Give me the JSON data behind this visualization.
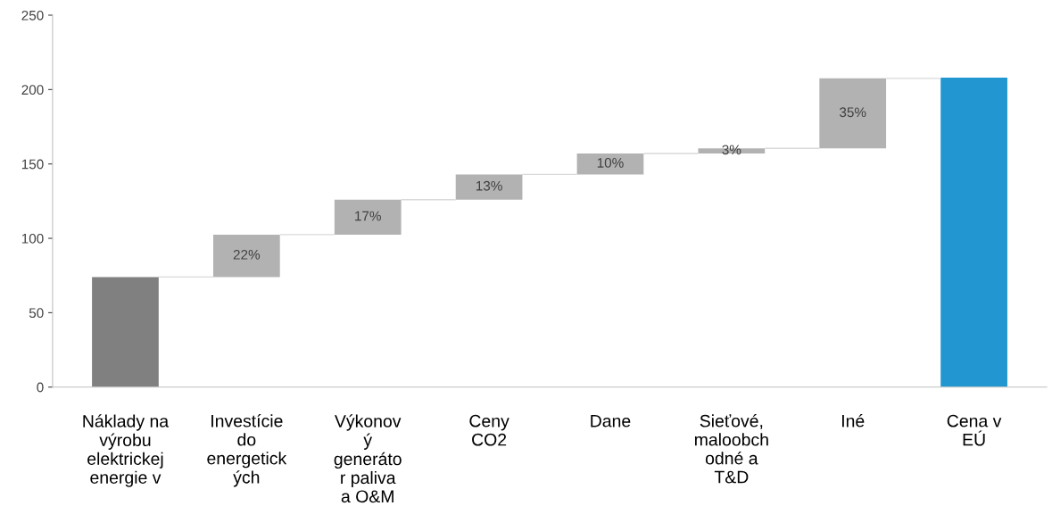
{
  "chart_data": {
    "type": "bar",
    "categories": [
      "Náklady na\nvýrobu\nelektrickej\nenergie v",
      "Investície\ndo\nenergetick\ných",
      "Výkonov\ný\ngeneráto\nr paliva\na O&M",
      "Ceny\nCO2",
      "Dane",
      "Sieťové,\nmaloobch\nodné a\nT&D",
      "Iné",
      "Cena v\nEÚ"
    ],
    "values": [
      74,
      28.5,
      23.5,
      17,
      14,
      3.5,
      47,
      208
    ],
    "base": [
      0,
      74,
      102.5,
      126,
      143,
      157,
      160.5,
      0
    ],
    "colors": [
      "#808080",
      "#b2b2b2",
      "#b2b2b2",
      "#b2b2b2",
      "#b2b2b2",
      "#b2b2b2",
      "#b2b2b2",
      "#2196d0"
    ],
    "annotations": [
      "22%",
      "17%",
      "13%",
      "10%",
      "3%",
      "35%"
    ],
    "ylim": [
      0,
      250
    ],
    "yticks": [
      0,
      50,
      100,
      150,
      200,
      250
    ],
    "grid": false
  }
}
